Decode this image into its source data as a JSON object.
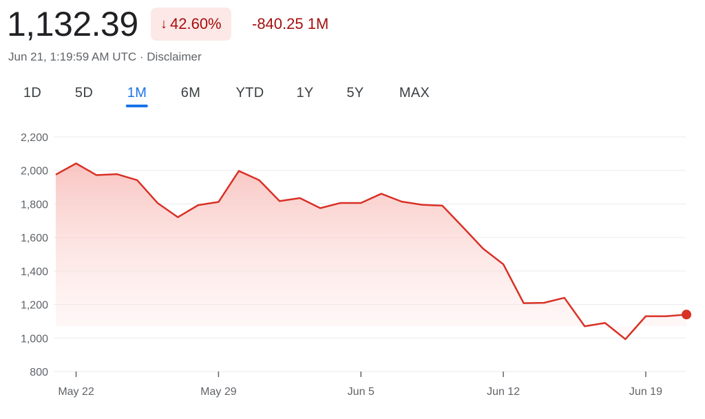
{
  "header": {
    "price": "1,132.39",
    "change_arrow": "↓",
    "change_pct": "42.60%",
    "change_abs": "-840.25 1M",
    "timestamp": "Jun 21, 1:19:59 AM UTC · ",
    "disclaimer": "Disclaimer"
  },
  "tabs": [
    {
      "label": "1D",
      "active": false
    },
    {
      "label": "5D",
      "active": false
    },
    {
      "label": "1M",
      "active": true
    },
    {
      "label": "6M",
      "active": false
    },
    {
      "label": "YTD",
      "active": false
    },
    {
      "label": "1Y",
      "active": false
    },
    {
      "label": "5Y",
      "active": false
    },
    {
      "label": "MAX",
      "active": false
    }
  ],
  "colors": {
    "negative": "#d93025",
    "negative_text": "#a50e0e",
    "badge_bg": "#fce8e6",
    "accent": "#1a73e8"
  },
  "chart_data": {
    "type": "area",
    "ylim": [
      800,
      2200
    ],
    "y_ticks": [
      800,
      1000,
      1200,
      1400,
      1600,
      1800,
      2000,
      2200
    ],
    "y_tick_labels": [
      "800",
      "1,000",
      "1,200",
      "1,400",
      "1,600",
      "1,800",
      "2,000",
      "2,200"
    ],
    "x_ticks": [
      {
        "label": "May 22",
        "x": 1
      },
      {
        "label": "May 29",
        "x": 8
      },
      {
        "label": "Jun 5",
        "x": 15
      },
      {
        "label": "Jun 12",
        "x": 22
      },
      {
        "label": "Jun 19",
        "x": 29
      }
    ],
    "grid": true,
    "series": [
      {
        "x": [
          0,
          1,
          2,
          3,
          4,
          5,
          6,
          7,
          8,
          9,
          10,
          11,
          12,
          13,
          14,
          15,
          16,
          17,
          18,
          19,
          20,
          21,
          22,
          23,
          24,
          25,
          26,
          27,
          28,
          29,
          30,
          31
        ],
        "values": [
          1975,
          2042,
          1972,
          1978,
          1942,
          1806,
          1721,
          1793,
          1812,
          1997,
          1942,
          1817,
          1835,
          1775,
          1806,
          1806,
          1861,
          1814,
          1795,
          1790,
          1663,
          1534,
          1440,
          1208,
          1210,
          1240,
          1070,
          1090,
          993,
          1130,
          1130,
          1140
        ]
      }
    ]
  }
}
